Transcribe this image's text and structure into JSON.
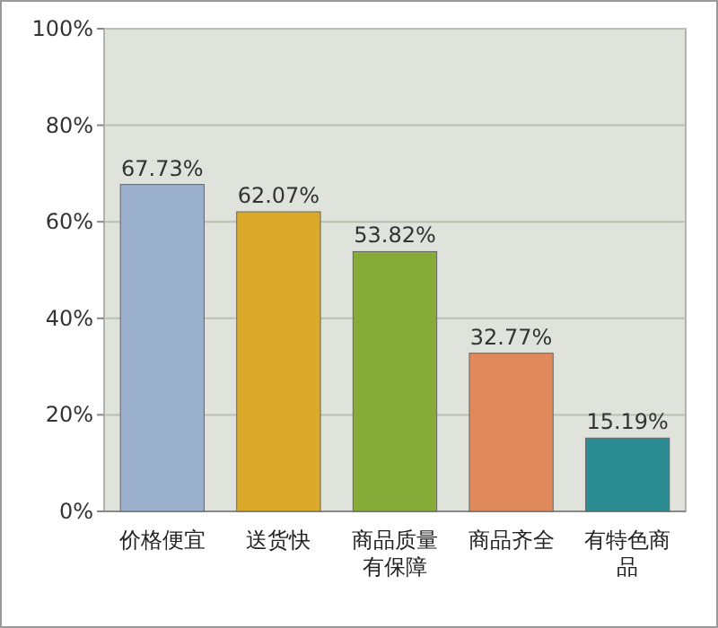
{
  "chart_data": {
    "type": "bar",
    "categories": [
      "价格便宜",
      "送货快",
      "商品质量有保障",
      "商品齐全",
      "有特色商品"
    ],
    "values": [
      67.73,
      62.07,
      53.82,
      32.77,
      15.19
    ],
    "colors": [
      "#9bb0cc",
      "#dcaa2a",
      "#86ab38",
      "#e08a5c",
      "#2b8c92"
    ],
    "value_labels": [
      "67.73%",
      "62.07%",
      "53.82%",
      "32.77%",
      "15.19%"
    ],
    "ylim": [
      0,
      100
    ],
    "yticks": [
      {
        "value": 0,
        "label": "0%"
      },
      {
        "value": 20,
        "label": "20%"
      },
      {
        "value": 40,
        "label": "40%"
      },
      {
        "value": 60,
        "label": "60%"
      },
      {
        "value": 80,
        "label": "80%"
      },
      {
        "value": 100,
        "label": "100%"
      }
    ],
    "grid": "y"
  }
}
